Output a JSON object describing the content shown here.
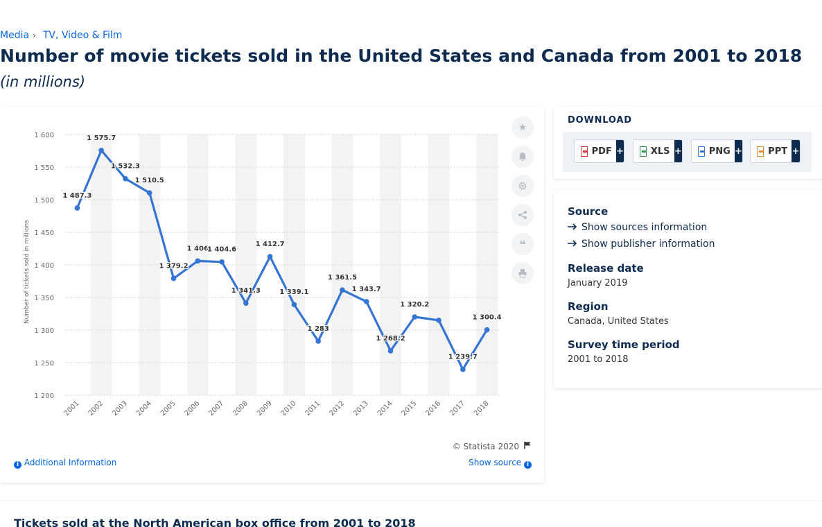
{
  "breadcrumb": [
    {
      "label": "Media"
    },
    {
      "label": "TV, Video & Film"
    }
  ],
  "page": {
    "title": "Number of movie tickets sold in the United States and Canada from 2001 to 2018",
    "subtitle": "(in millions)"
  },
  "chart_data": {
    "type": "line",
    "x": [
      "2001",
      "2002",
      "2003",
      "2004",
      "2005",
      "2006",
      "2007",
      "2008",
      "2009",
      "2010",
      "2011",
      "2012",
      "2013",
      "2014",
      "2015",
      "2016",
      "2017",
      "2018"
    ],
    "values": [
      1487.3,
      1575.7,
      1532.3,
      1510.5,
      1379.2,
      1406,
      1404.6,
      1341.3,
      1412.7,
      1339.1,
      1283,
      1361.5,
      1343.7,
      1268.2,
      1320.2,
      1315,
      1239.7,
      1300.4
    ],
    "data_labels": [
      "1 487.3",
      "1 575.7",
      "1 532.3",
      "1 510.5",
      "1 379.2",
      "1 406",
      "1 404.6",
      "1 341.3",
      "1 412.7",
      "1 339.1",
      "1 283",
      "1 361.5",
      "1 343.7",
      "1 268.2",
      "1 320.2",
      "",
      "1 239.7",
      "1 300.4"
    ],
    "ylabel": "Number of tickets sold in millions",
    "ylim": [
      1200,
      1600
    ],
    "yticks": [
      1200,
      1250,
      1300,
      1350,
      1400,
      1450,
      1500,
      1550,
      1600
    ],
    "ytick_labels": [
      "1 200",
      "1 250",
      "1 300",
      "1 350",
      "1 400",
      "1 450",
      "1 500",
      "1 550",
      "1 600"
    ],
    "grid": true,
    "color": "#3474d4"
  },
  "chart_footer": {
    "credit": "© Statista 2020",
    "additional_info": "Additional Information",
    "show_source": "Show source"
  },
  "download": {
    "title": "DOWNLOAD",
    "buttons": [
      {
        "label": "PDF",
        "icon": "pdf-file-icon",
        "color": "#d9363e"
      },
      {
        "label": "XLS",
        "icon": "xls-file-icon",
        "color": "#2e9b4f"
      },
      {
        "label": "PNG",
        "icon": "png-file-icon",
        "color": "#3a7bd5"
      },
      {
        "label": "PPT",
        "icon": "ppt-file-icon",
        "color": "#e8882d"
      }
    ],
    "plus": "+"
  },
  "info": {
    "source_heading": "Source",
    "show_sources": "Show sources information",
    "show_publisher": "Show publisher information",
    "release_heading": "Release date",
    "release_value": "January 2019",
    "region_heading": "Region",
    "region_value": "Canada, United States",
    "survey_heading": "Survey time period",
    "survey_value": "2001 to 2018"
  },
  "bottom": {
    "title": "Tickets sold at the North American box office from 2001 to 2018"
  }
}
